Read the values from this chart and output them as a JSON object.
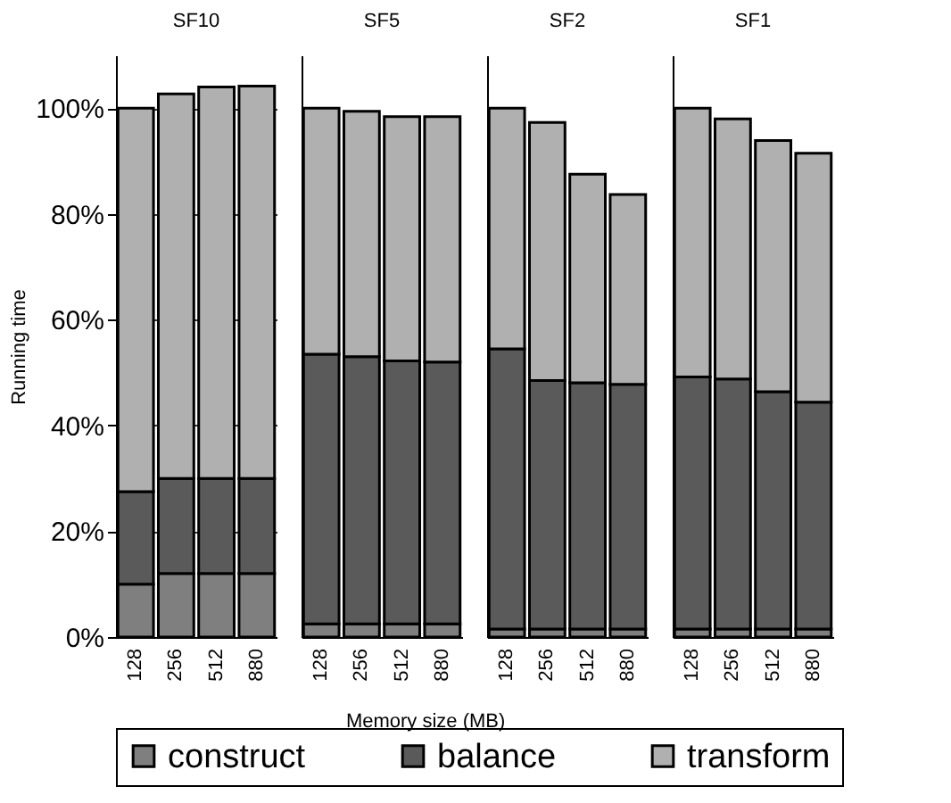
{
  "chart_data": [
    {
      "type": "bar",
      "title": "SF10",
      "ylabel": "Running time",
      "xlabel": "Memory size (MB)",
      "categories": [
        "128",
        "256",
        "512",
        "880"
      ],
      "stacked": true,
      "legend": "bottom",
      "grid": "y",
      "ylim": [
        0,
        110
      ],
      "yticks": [
        {
          "value": 0,
          "label": "0%"
        },
        {
          "value": 20,
          "label": "20%"
        },
        {
          "value": 40,
          "label": "40%"
        },
        {
          "value": 60,
          "label": "60%"
        },
        {
          "value": 80,
          "label": "80%"
        },
        {
          "value": 100,
          "label": "100%"
        }
      ],
      "series": [
        {
          "name": "construct",
          "color": "#7f7f7f",
          "values": [
            10,
            12,
            12,
            12
          ]
        },
        {
          "name": "balance",
          "color": "#5a5a5a",
          "values": [
            17.5,
            18,
            18,
            18
          ]
        },
        {
          "name": "transform",
          "color": "#b0b0b0",
          "values": [
            72.5,
            72.7,
            74,
            74.2
          ]
        }
      ]
    },
    {
      "type": "bar",
      "title": "SF5",
      "categories": [
        "128",
        "256",
        "512",
        "880"
      ],
      "stacked": true,
      "grid": "y",
      "tick_labels": "x",
      "ylim": [
        0,
        110
      ],
      "series": [
        {
          "name": "construct",
          "color": "#7f7f7f",
          "values": [
            2.5,
            2.5,
            2.5,
            2.5
          ]
        },
        {
          "name": "balance",
          "color": "#5a5a5a",
          "values": [
            51,
            50.5,
            49.7,
            49.5
          ]
        },
        {
          "name": "transform",
          "color": "#b0b0b0",
          "values": [
            46.5,
            46.4,
            46.2,
            46.4
          ]
        }
      ]
    },
    {
      "type": "bar",
      "title": "SF2",
      "categories": [
        "128",
        "256",
        "512",
        "880"
      ],
      "stacked": true,
      "grid": "y",
      "tick_labels": "x",
      "ylim": [
        0,
        110
      ],
      "series": [
        {
          "name": "construct",
          "color": "#7f7f7f",
          "values": [
            1.5,
            1.5,
            1.5,
            1.5
          ]
        },
        {
          "name": "balance",
          "color": "#5a5a5a",
          "values": [
            53,
            47,
            46.6,
            46.3
          ]
        },
        {
          "name": "transform",
          "color": "#b0b0b0",
          "values": [
            45.5,
            48.8,
            39.4,
            35.9
          ]
        }
      ]
    },
    {
      "type": "bar",
      "title": "SF1",
      "categories": [
        "128",
        "256",
        "512",
        "880"
      ],
      "stacked": true,
      "grid": "y",
      "tick_labels": "x",
      "ylim": [
        0,
        110
      ],
      "series": [
        {
          "name": "construct",
          "color": "#7f7f7f",
          "values": [
            1.5,
            1.5,
            1.5,
            1.5
          ]
        },
        {
          "name": "balance",
          "color": "#5a5a5a",
          "values": [
            47.7,
            47.3,
            44.9,
            42.9
          ]
        },
        {
          "name": "transform",
          "color": "#b0b0b0",
          "values": [
            50.8,
            49.2,
            47.5,
            47.1
          ]
        }
      ]
    }
  ]
}
